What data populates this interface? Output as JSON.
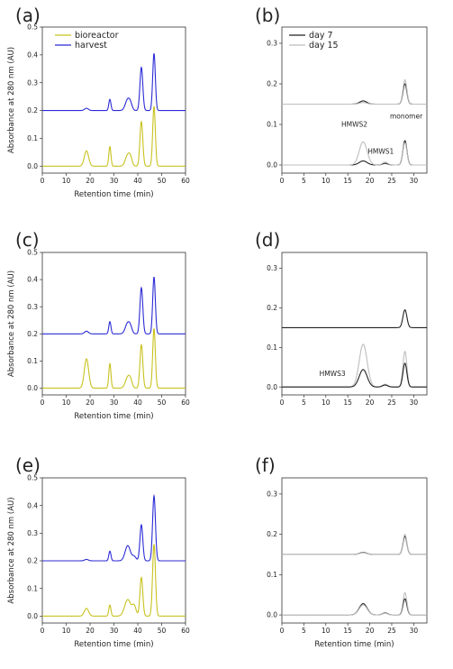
{
  "chart_data": [
    {
      "type": "line",
      "panel_label": "(a)",
      "xlabel": "Retention time (min)",
      "ylabel": "Absorbance at 280 nm (AU)",
      "xlim": [
        0,
        60
      ],
      "ylim": [
        -0.025,
        0.5
      ],
      "xticks": [
        0,
        10,
        20,
        30,
        40,
        50,
        60
      ],
      "yticks": [
        0.0,
        0.1,
        0.2,
        0.3,
        0.4,
        0.5
      ],
      "legend_position": "top-left",
      "series": [
        {
          "name": "bioreactor",
          "color": "#c8c21e",
          "baseline": 0.0,
          "peaks": [
            [
              18.5,
              0.055,
              0.9
            ],
            [
              28.3,
              0.07,
              0.45
            ],
            [
              35.8,
              0.04,
              1.0
            ],
            [
              37.0,
              0.02,
              0.7
            ],
            [
              41.5,
              0.16,
              0.6
            ],
            [
              46.8,
              0.215,
              0.55
            ]
          ]
        },
        {
          "name": "harvest",
          "color": "#2b2bd6",
          "baseline": 0.2,
          "peaks": [
            [
              18.5,
              0.008,
              0.8
            ],
            [
              28.3,
              0.04,
              0.45
            ],
            [
              35.8,
              0.04,
              1.0
            ],
            [
              37.0,
              0.015,
              0.7
            ],
            [
              41.5,
              0.155,
              0.6
            ],
            [
              46.8,
              0.205,
              0.55
            ]
          ]
        }
      ]
    },
    {
      "type": "line",
      "panel_label": "(b)",
      "xlim": [
        0,
        33
      ],
      "ylim": [
        -0.02,
        0.34
      ],
      "xticks": [
        0,
        5,
        10,
        15,
        20,
        25,
        30
      ],
      "yticks": [
        0.0,
        0.1,
        0.2,
        0.3
      ],
      "legend_position": "top-left",
      "series": [
        {
          "name": "day 7",
          "color": "#222222",
          "baseline": 0.0,
          "peaks": [
            [
              18.5,
              0.01,
              0.9
            ],
            [
              23.5,
              0.004,
              0.6
            ],
            [
              28.0,
              0.06,
              0.45
            ]
          ]
        },
        {
          "name": "day 15",
          "color": "#bdbdbd",
          "baseline": 0.0,
          "peaks": [
            [
              18.5,
              0.057,
              0.9
            ],
            [
              23.5,
              0.007,
              0.6
            ],
            [
              28.0,
              0.055,
              0.45
            ]
          ]
        },
        {
          "name": "",
          "color": "#222222",
          "baseline": 0.15,
          "peaks": [
            [
              18.5,
              0.008,
              0.8
            ],
            [
              28.0,
              0.05,
              0.45
            ]
          ]
        },
        {
          "name": "",
          "color": "#bdbdbd",
          "baseline": 0.15,
          "peaks": [
            [
              18.5,
              0.004,
              0.8
            ],
            [
              28.0,
              0.06,
              0.45
            ]
          ]
        }
      ],
      "annotations": [
        {
          "text": "HMWS2",
          "x": 16.5,
          "y": 0.095
        },
        {
          "text": "HMWS1",
          "x": 22.5,
          "y": 0.028
        },
        {
          "text": "monomer",
          "x": 28.3,
          "y": 0.115
        }
      ]
    },
    {
      "type": "line",
      "panel_label": "(c)",
      "xlabel": "Retention time (min)",
      "ylabel": "Absorbance at 280 nm (AU)",
      "xlim": [
        0,
        60
      ],
      "ylim": [
        -0.025,
        0.5
      ],
      "xticks": [
        0,
        10,
        20,
        30,
        40,
        50,
        60
      ],
      "yticks": [
        0.0,
        0.1,
        0.2,
        0.3,
        0.4,
        0.5
      ],
      "series": [
        {
          "name": "",
          "color": "#c8c21e",
          "baseline": 0.0,
          "peaks": [
            [
              18.5,
              0.108,
              0.9
            ],
            [
              28.3,
              0.09,
              0.45
            ],
            [
              35.8,
              0.04,
              1.0
            ],
            [
              37.0,
              0.02,
              0.7
            ],
            [
              41.5,
              0.16,
              0.6
            ],
            [
              46.8,
              0.22,
              0.55
            ]
          ]
        },
        {
          "name": "",
          "color": "#2b2bd6",
          "baseline": 0.2,
          "peaks": [
            [
              18.5,
              0.01,
              0.8
            ],
            [
              28.3,
              0.045,
              0.45
            ],
            [
              35.8,
              0.04,
              1.0
            ],
            [
              37.0,
              0.015,
              0.7
            ],
            [
              41.5,
              0.17,
              0.6
            ],
            [
              46.8,
              0.21,
              0.55
            ]
          ]
        }
      ]
    },
    {
      "type": "line",
      "panel_label": "(d)",
      "xlim": [
        0,
        33
      ],
      "ylim": [
        -0.02,
        0.34
      ],
      "xticks": [
        0,
        5,
        10,
        15,
        20,
        25,
        30
      ],
      "yticks": [
        0.0,
        0.1,
        0.2,
        0.3
      ],
      "series": [
        {
          "name": "",
          "color": "#bdbdbd",
          "baseline": 0.0,
          "peaks": [
            [
              18.5,
              0.108,
              0.9
            ],
            [
              23.5,
              0.007,
              0.6
            ],
            [
              28.0,
              0.09,
              0.45
            ]
          ]
        },
        {
          "name": "",
          "color": "#222222",
          "baseline": 0.0,
          "peaks": [
            [
              18.5,
              0.044,
              0.9
            ],
            [
              23.5,
              0.005,
              0.6
            ],
            [
              28.0,
              0.06,
              0.45
            ]
          ]
        },
        {
          "name": "",
          "color": "#222222",
          "baseline": 0.15,
          "peaks": [
            [
              28.0,
              0.045,
              0.45
            ]
          ]
        }
      ],
      "annotations": [
        {
          "text": "HMWS3",
          "x": 11.5,
          "y": 0.028
        }
      ]
    },
    {
      "type": "line",
      "panel_label": "(e)",
      "xlabel": "Retention time (min)",
      "ylabel": "Absorbance at 280 nm (AU)",
      "xlim": [
        0,
        60
      ],
      "ylim": [
        -0.025,
        0.5
      ],
      "xticks": [
        0,
        10,
        20,
        30,
        40,
        50,
        60
      ],
      "yticks": [
        0.0,
        0.1,
        0.2,
        0.3,
        0.4,
        0.5
      ],
      "series": [
        {
          "name": "",
          "color": "#c8c21e",
          "baseline": 0.0,
          "peaks": [
            [
              18.5,
              0.028,
              0.9
            ],
            [
              28.3,
              0.04,
              0.45
            ],
            [
              35.8,
              0.06,
              1.3
            ],
            [
              38.5,
              0.035,
              0.8
            ],
            [
              41.5,
              0.14,
              0.6
            ],
            [
              46.8,
              0.26,
              0.6
            ]
          ]
        },
        {
          "name": "",
          "color": "#2b2bd6",
          "baseline": 0.2,
          "peaks": [
            [
              18.5,
              0.005,
              0.8
            ],
            [
              28.3,
              0.035,
              0.45
            ],
            [
              35.8,
              0.055,
              1.1
            ],
            [
              38.5,
              0.015,
              0.8
            ],
            [
              41.5,
              0.13,
              0.6
            ],
            [
              46.8,
              0.235,
              0.6
            ]
          ]
        }
      ]
    },
    {
      "type": "line",
      "panel_label": "(f)",
      "xlabel": "Retention time (min)",
      "xlim": [
        0,
        33
      ],
      "ylim": [
        -0.02,
        0.34
      ],
      "xticks": [
        0,
        5,
        10,
        15,
        20,
        25,
        30
      ],
      "yticks": [
        0.0,
        0.1,
        0.2,
        0.3
      ],
      "series": [
        {
          "name": "",
          "color": "#222222",
          "baseline": 0.0,
          "peaks": [
            [
              18.5,
              0.028,
              0.9
            ],
            [
              23.5,
              0.005,
              0.6
            ],
            [
              28.0,
              0.04,
              0.45
            ]
          ]
        },
        {
          "name": "",
          "color": "#bdbdbd",
          "baseline": 0.0,
          "peaks": [
            [
              18.5,
              0.025,
              0.9
            ],
            [
              23.5,
              0.004,
              0.6
            ],
            [
              28.0,
              0.055,
              0.45
            ]
          ]
        },
        {
          "name": "",
          "color": "#222222",
          "baseline": 0.15,
          "peaks": [
            [
              18.5,
              0.005,
              0.8
            ],
            [
              28.0,
              0.045,
              0.45
            ]
          ]
        },
        {
          "name": "",
          "color": "#bdbdbd",
          "baseline": 0.15,
          "peaks": [
            [
              18.5,
              0.004,
              0.8
            ],
            [
              28.0,
              0.05,
              0.45
            ]
          ]
        }
      ]
    }
  ]
}
